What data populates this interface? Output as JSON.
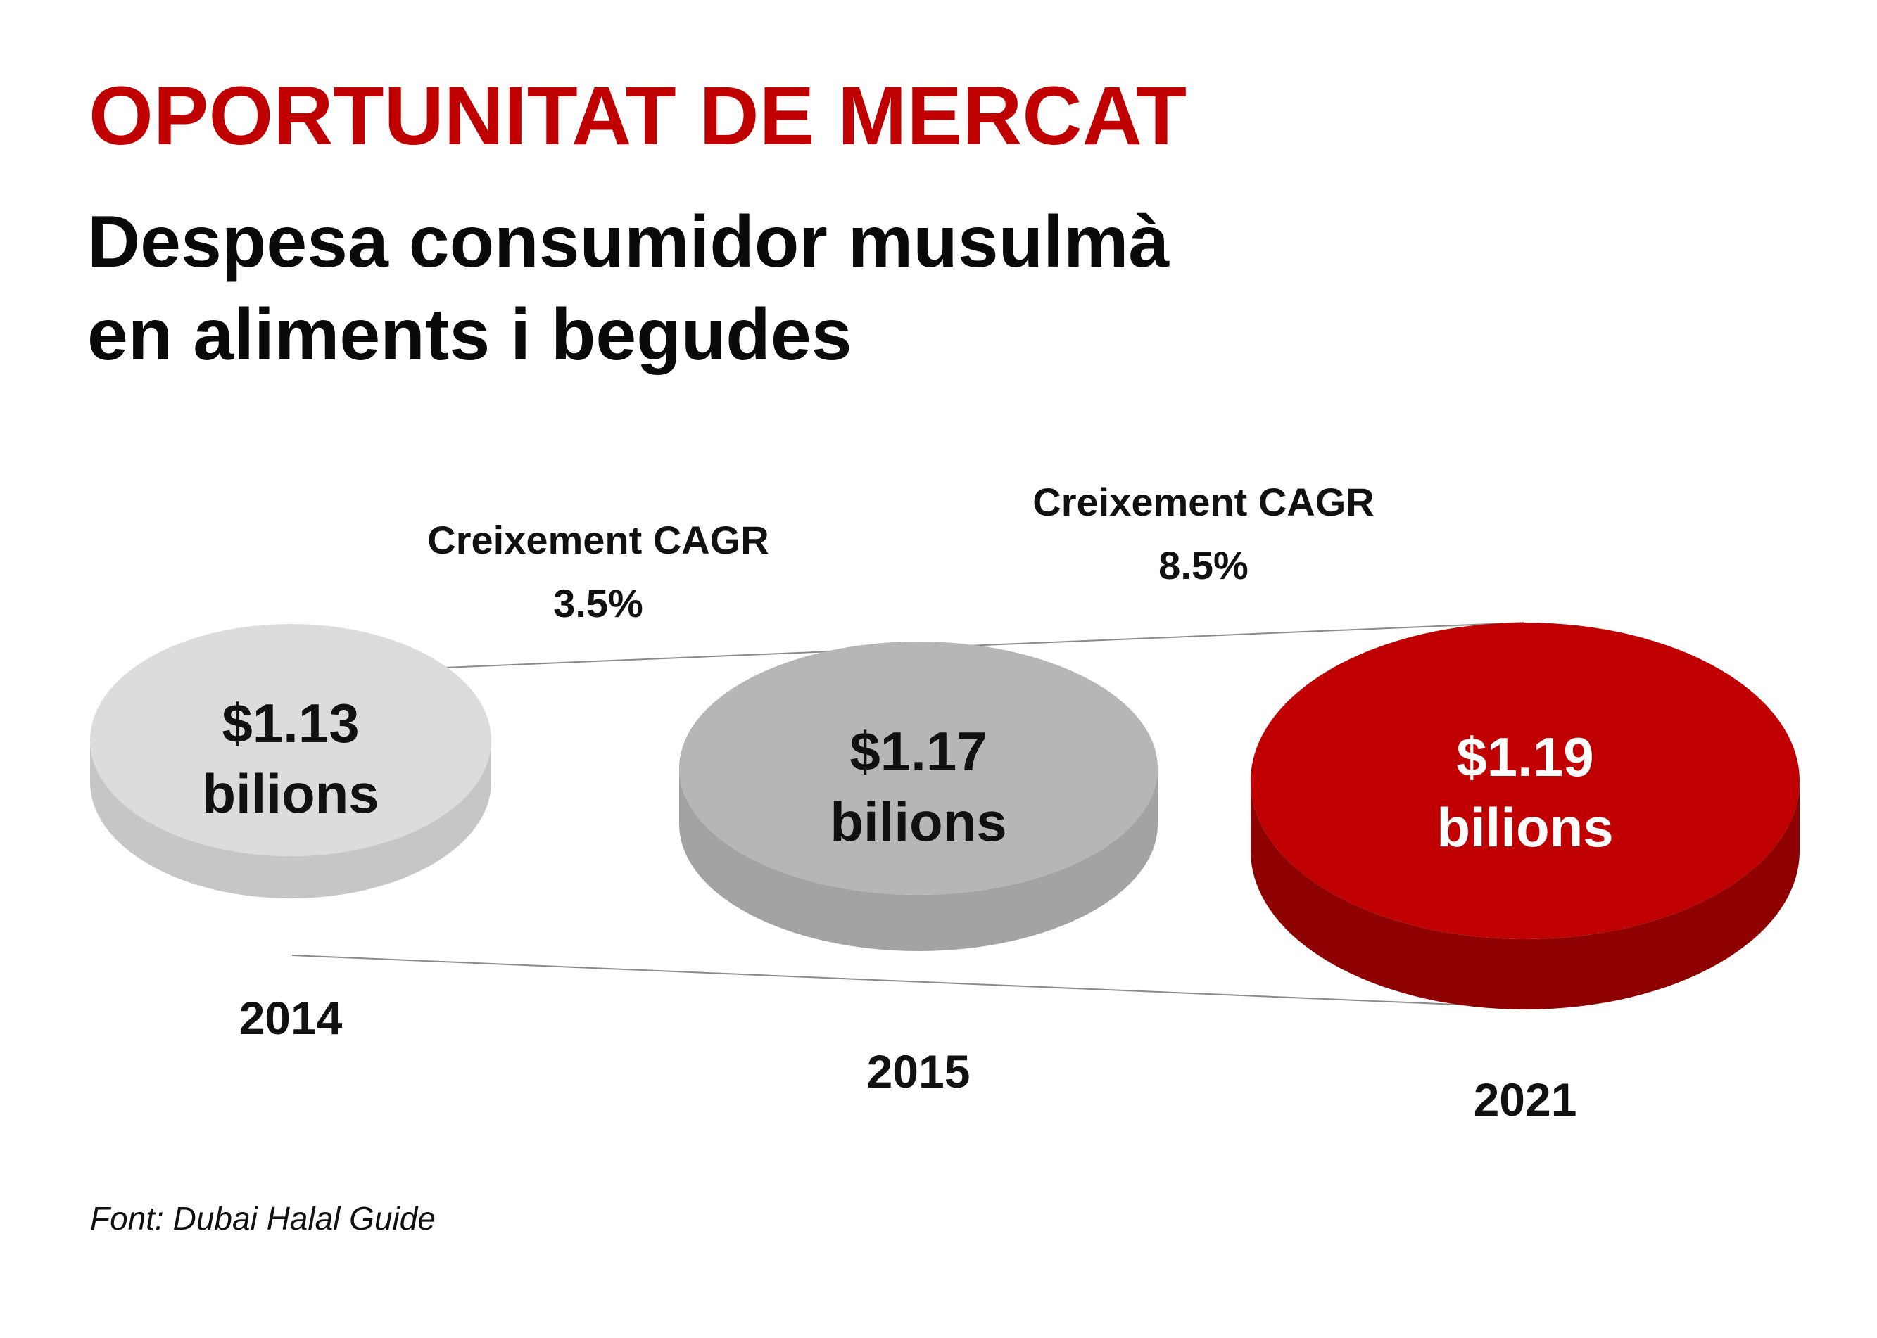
{
  "header": {
    "title": "OPORTUNITAT DE MERCAT",
    "subtitle_line1": "Despesa consumidor musulmà",
    "subtitle_line2": "en aliments i begudes"
  },
  "chart_data": {
    "type": "bubble",
    "unit": "bilions",
    "currency": "$",
    "points": [
      {
        "year": "2014",
        "value": 1.13,
        "value_label": "$1.13",
        "unit_label": "bilions",
        "top_color": "#dcdcdc",
        "side_color": "#c6c6c6",
        "text_color": "#111111"
      },
      {
        "year": "2015",
        "value": 1.17,
        "value_label": "$1.17",
        "unit_label": "bilions",
        "top_color": "#b6b6b6",
        "side_color": "#a3a3a3",
        "text_color": "#111111"
      },
      {
        "year": "2021",
        "value": 1.19,
        "value_label": "$1.19",
        "unit_label": "bilions",
        "top_color": "#c00000",
        "side_color": "#8f0000",
        "text_color": "#ffffff"
      }
    ],
    "annotations": [
      {
        "label": "Creixement CAGR",
        "value": "3.5%"
      },
      {
        "label": "Creixement CAGR",
        "value": "8.5%"
      }
    ]
  },
  "footer": {
    "source": "Font: Dubai Halal Guide"
  }
}
